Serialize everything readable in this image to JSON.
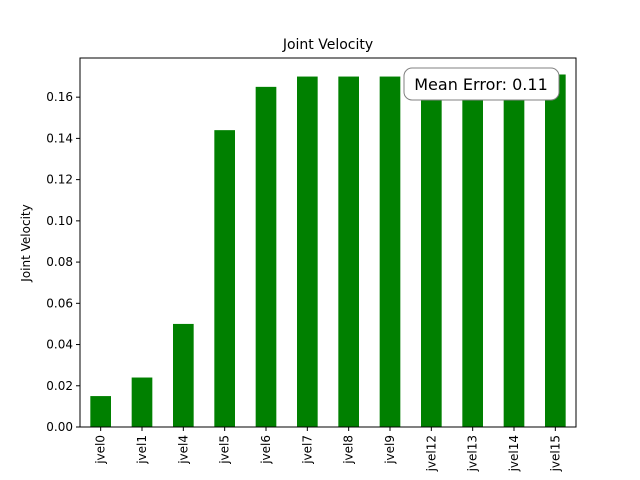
{
  "chart_data": {
    "type": "bar",
    "title": "Joint Velocity",
    "xlabel": "",
    "ylabel": "Joint Velocity",
    "categories": [
      "jvel0",
      "jvel1",
      "jvel4",
      "jvel5",
      "jvel6",
      "jvel7",
      "jvel8",
      "jvel9",
      "jvel12",
      "jvel13",
      "jvel14",
      "jvel15"
    ],
    "values": [
      0.015,
      0.024,
      0.05,
      0.144,
      0.165,
      0.17,
      0.17,
      0.17,
      0.17,
      0.171,
      0.171,
      0.171
    ],
    "ylim": [
      0,
      0.179
    ],
    "yticks": [
      0.0,
      0.02,
      0.04,
      0.06,
      0.08,
      0.1,
      0.12,
      0.14,
      0.16
    ],
    "ytick_labels": [
      "0.00",
      "0.02",
      "0.04",
      "0.06",
      "0.08",
      "0.10",
      "0.12",
      "0.14",
      "0.16"
    ],
    "bar_color": "#008000",
    "grid": false,
    "annotation": {
      "text": "Mean Error: 0.11",
      "placement": "top-right"
    }
  }
}
